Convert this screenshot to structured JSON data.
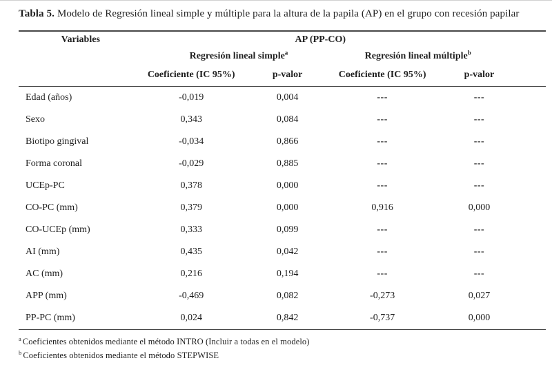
{
  "page": {
    "title_label": "Tabla 5.",
    "title_text": "Modelo de Regresión lineal simple y múltiple para la altura de la papila (AP) en el grupo con recesión papilar"
  },
  "table": {
    "variables_header": "Variables",
    "dependent_header": "AP (PP-CO)",
    "groups": {
      "simple": {
        "label": "Regresión lineal simple",
        "sup": "a"
      },
      "multiple": {
        "label": "Regresión lineal múltiple",
        "sup": "b"
      }
    },
    "sub_headers": {
      "coef_simple": "Coeficiente (IC 95%)",
      "p_simple": "p-valor",
      "coef_multiple": "Coeficiente (IC 95%)",
      "p_multiple": "p-valor"
    },
    "rows": [
      {
        "variable": "Edad (años)",
        "coef_simple": "-0,019",
        "p_simple": "0,004",
        "coef_multiple": "---",
        "p_multiple": "---"
      },
      {
        "variable": "Sexo",
        "coef_simple": "0,343",
        "p_simple": "0,084",
        "coef_multiple": "---",
        "p_multiple": "---"
      },
      {
        "variable": "Biotipo gingival",
        "coef_simple": "-0,034",
        "p_simple": "0,866",
        "coef_multiple": "---",
        "p_multiple": "---"
      },
      {
        "variable": "Forma coronal",
        "coef_simple": "-0,029",
        "p_simple": "0,885",
        "coef_multiple": "---",
        "p_multiple": "---"
      },
      {
        "variable": "UCEp-PC",
        "coef_simple": "0,378",
        "p_simple": "0,000",
        "coef_multiple": "---",
        "p_multiple": "---"
      },
      {
        "variable": "CO-PC (mm)",
        "coef_simple": "0,379",
        "p_simple": "0,000",
        "coef_multiple": "0,916",
        "p_multiple": "0,000"
      },
      {
        "variable": "CO-UCEp (mm)",
        "coef_simple": "0,333",
        "p_simple": "0,099",
        "coef_multiple": "---",
        "p_multiple": "---"
      },
      {
        "variable": "AI (mm)",
        "coef_simple": "0,435",
        "p_simple": "0,042",
        "coef_multiple": "---",
        "p_multiple": "---"
      },
      {
        "variable": "AC (mm)",
        "coef_simple": "0,216",
        "p_simple": "0,194",
        "coef_multiple": "---",
        "p_multiple": "---"
      },
      {
        "variable": "APP (mm)",
        "coef_simple": "-0,469",
        "p_simple": "0,082",
        "coef_multiple": "-0,273",
        "p_multiple": "0,027"
      },
      {
        "variable": "PP-PC (mm)",
        "coef_simple": "0,024",
        "p_simple": "0,842",
        "coef_multiple": "-0,737",
        "p_multiple": "0,000"
      }
    ]
  },
  "footnotes": [
    {
      "sup": "a",
      "text": "Coeficientes obtenidos mediante el método INTRO (Incluir a todas en el modelo)"
    },
    {
      "sup": "b",
      "text": "Coeficientes obtenidos mediante el método STEPWISE"
    }
  ],
  "colors": {
    "text": "#1f1f1f",
    "rule": "#474747",
    "top_edge": "#d0d0d0"
  }
}
